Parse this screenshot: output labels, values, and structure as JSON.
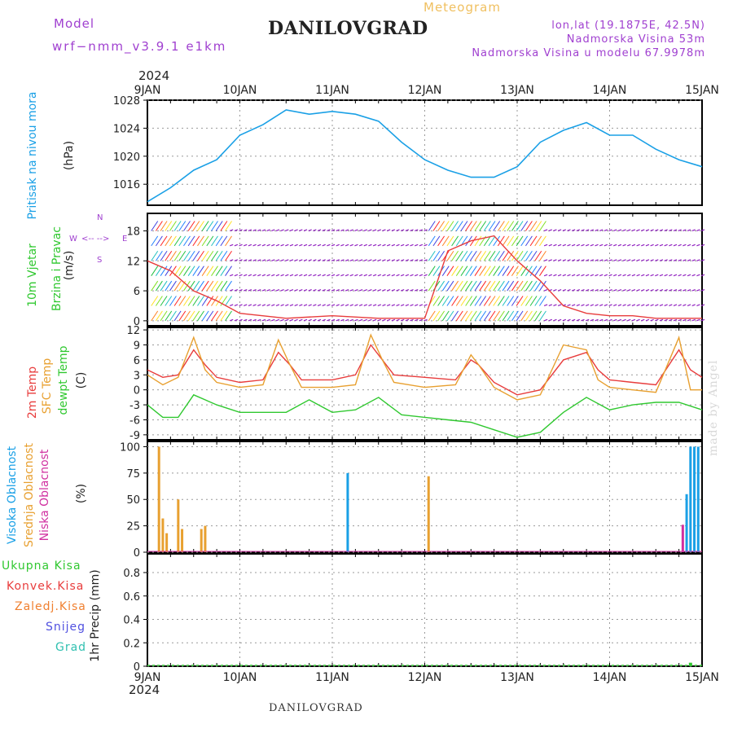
{
  "header": {
    "model_label": "Model",
    "model_version": "wrf−nmm_v3.9.1  e1km",
    "title": "DANILOVGRAD",
    "subtitle": "Meteogram",
    "lonlat": "lon,lat (19.1875E, 42.5N)",
    "altitude": "Nadmorska Visina 53m",
    "model_altitude": "Nadmorska Visina u modelu 67.9978m"
  },
  "footer": {
    "station": "DANILOVGRAD",
    "credit": "made by Angel"
  },
  "chart_data": [
    {
      "type": "line",
      "panel": "pressure",
      "ylabel_left": "Pritisak na nivou mora",
      "ylabel_unit": "(hPa)",
      "ylim": [
        1013,
        1028
      ],
      "yticks": [
        1016,
        1020,
        1024,
        1028
      ],
      "color": "#1aa0e6",
      "x_hours": [
        0,
        6,
        12,
        18,
        24,
        30,
        36,
        42,
        48,
        54,
        60,
        66,
        72,
        78,
        84,
        90,
        96,
        102,
        108,
        114,
        120,
        126,
        132,
        138,
        144
      ],
      "values": [
        1013.5,
        1015.5,
        1018,
        1019.5,
        1023,
        1024.5,
        1026.6,
        1026,
        1026.4,
        1026,
        1025,
        1022,
        1019.5,
        1018,
        1017,
        1017,
        1018.5,
        1022,
        1023.7,
        1024.8,
        1023,
        1023,
        1021,
        1019.5,
        1018.5
      ]
    },
    {
      "type": "line",
      "panel": "wind",
      "ylabel_left_1": "10m Vjetar",
      "ylabel_left_2": "Brzina i Pravac",
      "ylabel_unit": "(m/s)",
      "ylim": [
        -1,
        21.5
      ],
      "yticks": [
        0,
        6,
        12,
        18
      ],
      "compass": {
        "n": "N",
        "s": "S",
        "e": "E",
        "w": "W"
      },
      "series": [
        {
          "color": "#e83c3c",
          "x_hours": [
            0,
            6,
            12,
            18,
            24,
            36,
            48,
            60,
            72,
            78,
            84,
            90,
            96,
            102,
            108,
            114,
            120,
            126,
            132,
            144
          ],
          "values": [
            12,
            10,
            6,
            4,
            1.5,
            0.5,
            1,
            0.5,
            0.5,
            14,
            16,
            17,
            12,
            8,
            3,
            1.5,
            1,
            1,
            0.5,
            0.5
          ]
        }
      ]
    },
    {
      "type": "line",
      "panel": "temperature",
      "ylabel_left_1": "2m Temp",
      "ylabel_left_2": "SFC Temp",
      "ylabel_left_3": "dewpt Temp",
      "ylabel_unit": "(C)",
      "ylim": [
        -10,
        12.5
      ],
      "yticks": [
        -9,
        -6,
        -3,
        0,
        3,
        6,
        9,
        12
      ],
      "series": [
        {
          "name": "2m Temp",
          "color": "#e83c3c",
          "x_hours": [
            0,
            4,
            8,
            12,
            15,
            18,
            24,
            30,
            34,
            37,
            40,
            48,
            54,
            58,
            61,
            64,
            72,
            80,
            84,
            86,
            90,
            96,
            102,
            108,
            114,
            117,
            120,
            126,
            132,
            138,
            141,
            144
          ],
          "values": [
            4,
            2.5,
            3,
            8,
            5,
            2.5,
            1.5,
            2,
            7.5,
            5,
            2,
            2,
            3,
            9,
            6,
            3,
            2.5,
            2,
            6,
            5,
            1.5,
            -1,
            0,
            6,
            7.5,
            4,
            2,
            1.5,
            1,
            8,
            4,
            2.5
          ]
        },
        {
          "name": "SFC Temp",
          "color": "#e8a030",
          "x_hours": [
            0,
            4,
            8,
            12,
            15,
            18,
            24,
            30,
            34,
            37,
            40,
            48,
            54,
            58,
            61,
            64,
            72,
            80,
            84,
            86,
            90,
            96,
            102,
            108,
            114,
            117,
            120,
            126,
            132,
            138,
            141,
            144
          ],
          "values": [
            3,
            1,
            2.5,
            10.5,
            4,
            1.5,
            0.5,
            1,
            10,
            5,
            0.5,
            0.5,
            1,
            11,
            6,
            1.5,
            0.5,
            1,
            7,
            5,
            0.5,
            -2,
            -1,
            9,
            8,
            2,
            0.5,
            0,
            -0.5,
            10.5,
            0,
            0
          ]
        },
        {
          "name": "dewpt Temp",
          "color": "#30c830",
          "x_hours": [
            0,
            4,
            8,
            12,
            18,
            24,
            30,
            36,
            42,
            48,
            54,
            60,
            66,
            72,
            78,
            84,
            90,
            96,
            102,
            108,
            114,
            120,
            126,
            132,
            138,
            144
          ],
          "values": [
            -3,
            -5.5,
            -5.5,
            -1,
            -3,
            -4.5,
            -4.5,
            -4.5,
            -2,
            -4.5,
            -4,
            -1.5,
            -5,
            -5.5,
            -6,
            -6.5,
            -8,
            -9.5,
            -8.5,
            -4.5,
            -1.5,
            -4,
            -3,
            -2.5,
            -2.5,
            -4
          ]
        }
      ]
    },
    {
      "type": "bar",
      "panel": "clouds",
      "ylabel_left_1": "Visoka Oblacnost",
      "ylabel_left_2": "Srednja Oblacnost",
      "ylabel_left_3": "Niska Oblacnost",
      "ylabel_unit": "(%)",
      "ylim": [
        0,
        105
      ],
      "yticks": [
        0,
        25,
        50,
        75,
        100
      ],
      "series": [
        {
          "name": "Visoka Oblacnost",
          "color": "#1aa0e6",
          "x_hours": [
            52,
            140,
            141,
            142,
            143
          ],
          "values": [
            75,
            55,
            100,
            100,
            100
          ]
        },
        {
          "name": "Srednja Oblacnost",
          "color": "#e8a030",
          "x_hours": [
            3,
            4,
            5,
            8,
            9,
            14,
            15,
            73
          ],
          "values": [
            100,
            32,
            18,
            50,
            22,
            22,
            25,
            72
          ]
        },
        {
          "name": "Niska Oblacnost",
          "color": "#d030a0",
          "x_hours": [
            139
          ],
          "values": [
            26
          ]
        }
      ]
    },
    {
      "type": "bar",
      "panel": "precip",
      "ylabel_left_1": "Ukupna  Kisa",
      "ylabel_left_2": "Konvek.Kisa",
      "ylabel_left_3": "Zaledj.Kisa",
      "ylabel_left_4": "Snijeg",
      "ylabel_left_5": "Grad",
      "ylabel_unit": "1hr Precip (mm)",
      "ylim": [
        0,
        0.96
      ],
      "yticks": [
        0,
        0.2,
        0.4,
        0.6,
        0.8
      ],
      "legend_colors": [
        "#30c830",
        "#e83c3c",
        "#f08030",
        "#5050e0",
        "#30c0b0"
      ],
      "series": [
        {
          "name": "Ukupna  Kisa",
          "color": "#30c830",
          "x_hours": [
            141
          ],
          "values": [
            0.03
          ]
        }
      ]
    }
  ],
  "x_axis": {
    "year": "2024",
    "labels": [
      "9JAN",
      "10JAN",
      "11JAN",
      "12JAN",
      "13JAN",
      "14JAN",
      "15JAN"
    ],
    "day_hours": [
      0,
      24,
      48,
      72,
      96,
      120,
      144
    ]
  }
}
